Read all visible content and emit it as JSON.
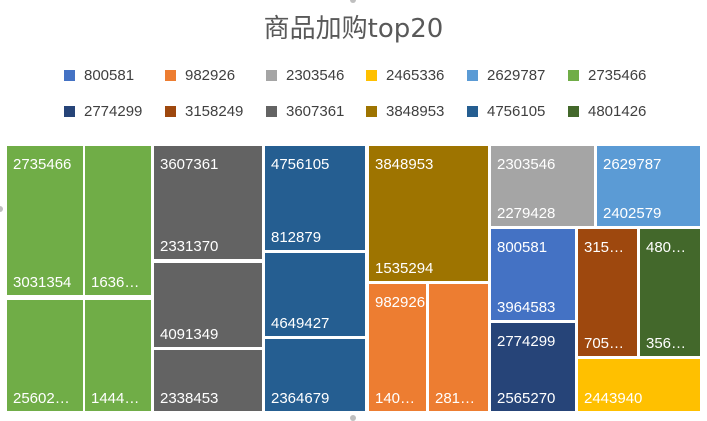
{
  "chart_data": {
    "type": "treemap",
    "title": "商品加购top20",
    "legend_position": "top",
    "groups": [
      {
        "name": "2735466",
        "color": "#70AD47",
        "items": [
          {
            "label": "2735466"
          },
          {
            "label": "3031354"
          },
          {
            "label": "1636…"
          },
          {
            "label": "25602…"
          },
          {
            "label": "1444…"
          }
        ]
      },
      {
        "name": "3607361",
        "color": "#636363",
        "items": [
          {
            "label": "3607361"
          },
          {
            "label": "2331370"
          },
          {
            "label": "4091349"
          },
          {
            "label": "2338453"
          }
        ]
      },
      {
        "name": "4756105",
        "color": "#255E91",
        "items": [
          {
            "label": "4756105"
          },
          {
            "label": "812879"
          },
          {
            "label": "4649427"
          },
          {
            "label": "2364679"
          }
        ]
      },
      {
        "name": "3848953",
        "color": "#9E7400",
        "items": [
          {
            "label": "3848953"
          },
          {
            "label": "1535294"
          }
        ]
      },
      {
        "name": "982926",
        "color": "#ED7D31",
        "items": [
          {
            "label": "982926"
          },
          {
            "label": "140…"
          },
          {
            "label": "281…"
          }
        ]
      },
      {
        "name": "2303546",
        "color": "#A5A5A5",
        "items": [
          {
            "label": "2303546"
          },
          {
            "label": "2279428"
          }
        ]
      },
      {
        "name": "2629787",
        "color": "#5B9BD5",
        "items": [
          {
            "label": "2629787"
          },
          {
            "label": "2402579"
          }
        ]
      },
      {
        "name": "800581",
        "color": "#4472C4",
        "items": [
          {
            "label": "800581"
          },
          {
            "label": "3964583"
          }
        ]
      },
      {
        "name": "3158249",
        "color": "#9E480E",
        "items": [
          {
            "label": "315…"
          },
          {
            "label": "705…"
          }
        ]
      },
      {
        "name": "4801426",
        "color": "#43682B",
        "items": [
          {
            "label": "480…"
          },
          {
            "label": "356…"
          }
        ]
      },
      {
        "name": "2774299",
        "color": "#264478",
        "items": [
          {
            "label": "2774299"
          },
          {
            "label": "2565270"
          }
        ]
      },
      {
        "name": "2465336",
        "color": "#FFC000",
        "items": [
          {
            "label": "2443940"
          }
        ]
      }
    ],
    "legend": [
      [
        {
          "label": "800581",
          "color": "#4472C4"
        },
        {
          "label": "982926",
          "color": "#ED7D31"
        },
        {
          "label": "2303546",
          "color": "#A5A5A5"
        },
        {
          "label": "2465336",
          "color": "#FFC000"
        },
        {
          "label": "2629787",
          "color": "#5B9BD5"
        },
        {
          "label": "2735466",
          "color": "#70AD47"
        }
      ],
      [
        {
          "label": "2774299",
          "color": "#264478"
        },
        {
          "label": "3158249",
          "color": "#9E480E"
        },
        {
          "label": "3607361",
          "color": "#636363"
        },
        {
          "label": "3848953",
          "color": "#9E7400"
        },
        {
          "label": "4756105",
          "color": "#255E91"
        },
        {
          "label": "4801426",
          "color": "#43682B"
        }
      ]
    ]
  }
}
